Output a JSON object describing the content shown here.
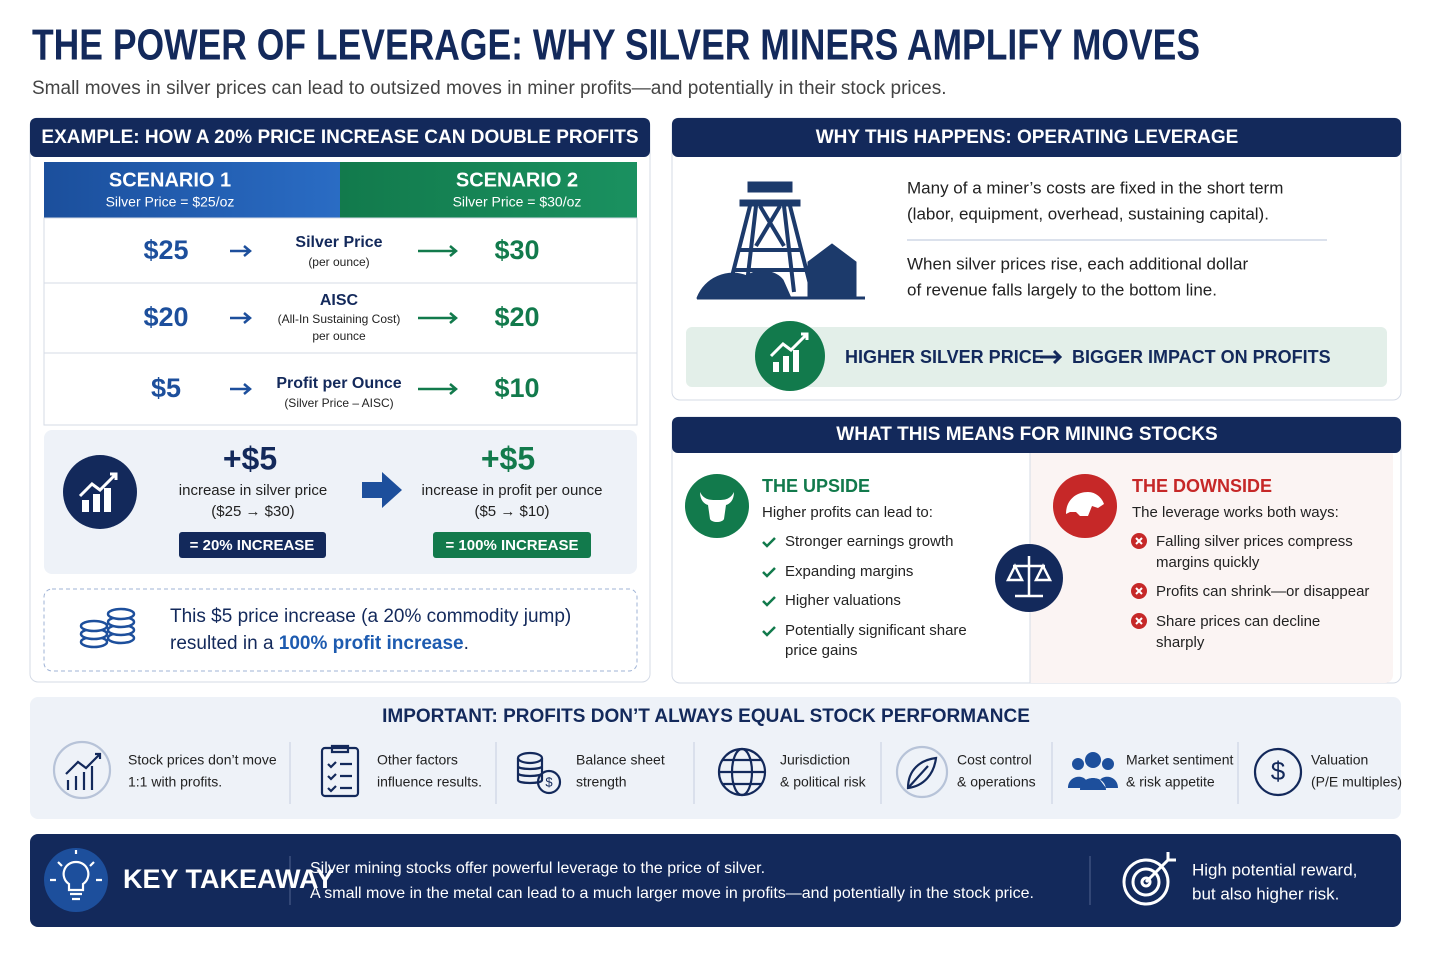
{
  "header": {
    "title": "THE POWER OF LEVERAGE: WHY SILVER MINERS AMPLIFY MOVES",
    "subtitle": "Small moves in silver prices can lead to outsized moves in miner profits—and potentially in their stock prices."
  },
  "example": {
    "title": "EXAMPLE: HOW A 20% PRICE INCREASE CAN DOUBLE PROFITS",
    "scenarios": [
      {
        "name": "SCENARIO 1",
        "price": "Silver Price = $25/oz"
      },
      {
        "name": "SCENARIO 2",
        "price": "Silver Price = $30/oz"
      }
    ],
    "rows": [
      {
        "left": "$25",
        "label": "Silver Price",
        "notes": [
          "(per ounce)"
        ],
        "right": "$30"
      },
      {
        "left": "$20",
        "label": "AISC",
        "notes": [
          "(All-In Sustaining Cost)",
          "per ounce"
        ],
        "right": "$20"
      },
      {
        "left": "$5",
        "label": "Profit per Ounce",
        "notes": [
          "(Silver Price – AISC)"
        ],
        "right": "$10"
      }
    ],
    "summary": [
      {
        "amount": "+$5",
        "text": "increase in silver price",
        "range": "($25 → $30)",
        "badge": "= 20% INCREASE"
      },
      {
        "amount": "+$5",
        "text": "increase in profit per ounce",
        "range": "($5 → $10)",
        "badge": "= 100% INCREASE"
      }
    ],
    "callout": {
      "line1": "This $5 price increase (a 20% commodity jump)",
      "line2_start": "resulted in a ",
      "line2_highlight": "100% profit increase",
      "line2_end": "."
    }
  },
  "why": {
    "title": "WHY THIS HAPPENS: OPERATING LEVERAGE",
    "paragraphs": [
      [
        "Many of a miner’s costs are fixed in the short term",
        "(labor, equipment, overhead, sustaining capital)."
      ],
      [
        "When silver prices rise, each additional dollar",
        "of revenue falls largely to the bottom line."
      ]
    ],
    "banner": {
      "left": "HIGHER SILVER PRICE",
      "right": "BIGGER IMPACT ON PROFITS"
    }
  },
  "stocks": {
    "title": "WHAT THIS MEANS FOR MINING STOCKS",
    "upside": {
      "title": "THE UPSIDE",
      "intro": "Higher profits can lead to:",
      "items": [
        [
          "Stronger earnings growth"
        ],
        [
          "Expanding margins"
        ],
        [
          "Higher valuations"
        ],
        [
          "Potentially significant share",
          "price gains"
        ]
      ]
    },
    "downside": {
      "title": "THE DOWNSIDE",
      "intro": "The leverage works both ways:",
      "items": [
        [
          "Falling silver prices compress",
          "margins quickly"
        ],
        [
          "Profits can shrink—or disappear"
        ],
        [
          "Share prices can decline",
          "sharply"
        ]
      ]
    }
  },
  "important": {
    "title": "IMPORTANT: PROFITS DON’T ALWAYS EQUAL STOCK PERFORMANCE",
    "factors": [
      [
        "Stock prices don’t move",
        "1:1 with profits."
      ],
      [
        "Other factors",
        "influence results."
      ],
      [
        "Balance sheet",
        "strength"
      ],
      [
        "Jurisdiction",
        "& political risk"
      ],
      [
        "Cost control",
        "& operations"
      ],
      [
        "Market sentiment",
        "& risk appetite"
      ],
      [
        "Valuation",
        "(P/E multiples)"
      ]
    ]
  },
  "takeaway": {
    "title": "KEY TAKEAWAY",
    "lines": [
      "Silver mining stocks offer powerful leverage to the price of silver.",
      "A small move in the metal can lead to a much larger move in profits—and potentially in the stock price."
    ],
    "side": [
      "High potential reward,",
      "but also higher risk."
    ]
  }
}
